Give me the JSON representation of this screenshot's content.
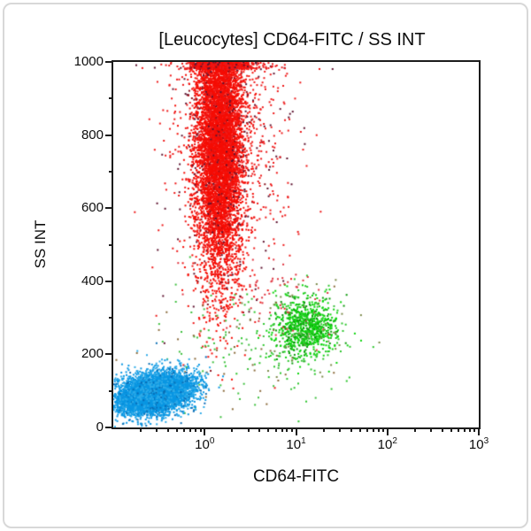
{
  "chart_data": {
    "type": "scatter",
    "title": "[Leucocytes] CD64-FITC / SS INT",
    "xlabel": "CD64-FITC",
    "ylabel": "SS INT",
    "x_scale": "log10",
    "xlim_log": [
      -1,
      3
    ],
    "ylim": [
      0,
      1000
    ],
    "grid": false,
    "legend": "none",
    "axis_color": "#1c1c1c",
    "frame_color": "#d8d8d8",
    "x_tick_base": "10",
    "x_tick_exponents": [
      "0",
      "1",
      "2",
      "3"
    ],
    "y_tick_labels": [
      "0",
      "200",
      "400",
      "600",
      "800",
      "1000"
    ],
    "y_major_step": 200,
    "y_minor_step": 100,
    "populations": [
      {
        "id": "granulocytes-core",
        "color": "#f50d05",
        "speckle_color": "#8a1420",
        "speckle_ratio": 0.04,
        "count": 8000,
        "x_log_mean": 0.16,
        "x_log_sd": 0.13,
        "y_mean": 800,
        "y_sd": 195,
        "clamp_top": true,
        "dot": 2
      },
      {
        "id": "granulocytes-halo",
        "color": "#ee1a1a",
        "speckle_color": "#5f1430",
        "speckle_ratio": 0.22,
        "count": 950,
        "x_log_mean": 0.26,
        "x_log_sd": 0.34,
        "y_mean": 790,
        "y_sd": 210,
        "clamp_top": true,
        "dot": 2
      },
      {
        "id": "monocytes-core",
        "color": "#0bd40b",
        "speckle_color": "#0a9a0a",
        "speckle_ratio": 0.3,
        "count": 750,
        "x_log_mean": 1.1,
        "x_log_sd": 0.17,
        "y_mean": 272,
        "y_sd": 42,
        "dot": 2
      },
      {
        "id": "monocytes-halo",
        "color": "#2cc52c",
        "speckle_color": "#7c8a4a",
        "speckle_ratio": 0.2,
        "count": 180,
        "x_log_mean": 1.02,
        "x_log_sd": 0.3,
        "y_mean": 268,
        "y_sd": 75,
        "dot": 2
      },
      {
        "id": "debris-trail",
        "color": "#3fc03f",
        "speckle_color": "#8a6a3a",
        "speckle_ratio": 0.3,
        "count": 130,
        "x_log_mean": 0.3,
        "x_log_sd": 0.5,
        "y_mean": 230,
        "y_sd": 90,
        "dot": 2
      },
      {
        "id": "scatter-red-specks",
        "color": "#e03540",
        "speckle_color": "#e03540",
        "speckle_ratio": 0,
        "count": 60,
        "x_log_mean": 0.72,
        "x_log_sd": 0.38,
        "y_mean": 365,
        "y_sd": 55,
        "dot": 2
      },
      {
        "id": "lymphocytes-core",
        "color": "#0a97e3",
        "speckle_color": "#0667b5",
        "speckle_ratio": 0.05,
        "count": 5500,
        "x_log_mean": -0.55,
        "x_log_sd": 0.2,
        "y_mean": 93,
        "y_sd": 25,
        "tilt": 38,
        "dot": 2
      },
      {
        "id": "lymphocytes-halo",
        "color": "#2fabe8",
        "speckle_color": "#0a6fb5",
        "speckle_ratio": 0.15,
        "count": 450,
        "x_log_mean": -0.52,
        "x_log_sd": 0.28,
        "y_mean": 95,
        "y_sd": 38,
        "tilt": 38,
        "dot": 2
      }
    ]
  }
}
